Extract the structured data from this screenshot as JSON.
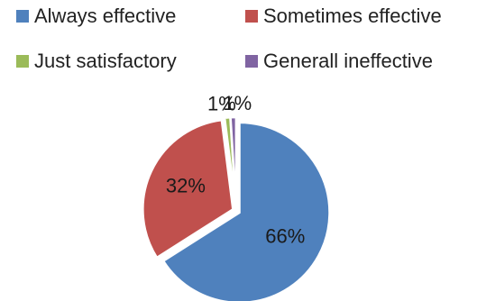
{
  "chart_data": {
    "type": "pie",
    "categories": [
      "Always effective",
      "Sometimes effective",
      "Just satisfactory",
      "Generall ineffective"
    ],
    "values": [
      66,
      32,
      1,
      1
    ],
    "data_labels": [
      "66%",
      "32%",
      "1%",
      "1%"
    ],
    "colors": [
      "#4f81bd",
      "#c0504d",
      "#9bbb59",
      "#8064a2"
    ],
    "legend_position": "top"
  }
}
